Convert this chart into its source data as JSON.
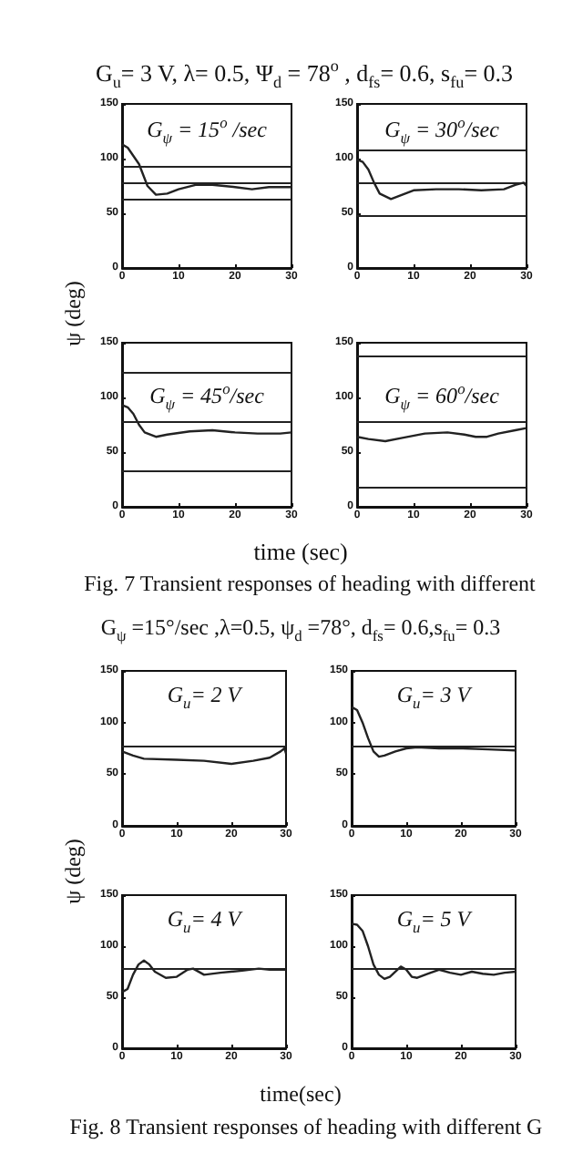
{
  "chart_data": [
    {
      "type": "line",
      "title": "G$_{ψ}$ = 15$^{o}$ /sec",
      "subtitle": "G$_{u}$= 3 V, λ= 0.5, Ψ$_{d}$ = 78$^{o}$ , d$_{fs}$= 0.6, s$_{fu}$= 0.3",
      "ylabel": "ψ (deg)",
      "xlim": [
        0,
        30
      ],
      "xticks": [
        0,
        10,
        20,
        30
      ],
      "ylim": [
        0,
        150
      ],
      "yticks": [
        0,
        50,
        100,
        150
      ],
      "grid": false,
      "marker": "none",
      "line_style": "solid",
      "series": [
        {
          "color": "#222222",
          "x": [
            0,
            1,
            3,
            4.5,
            6,
            8,
            10,
            13,
            16,
            20,
            23,
            26,
            30
          ],
          "values": [
            113,
            110,
            95,
            75,
            67,
            68,
            72,
            76,
            76,
            74,
            72,
            74,
            74
          ]
        }
      ],
      "ref_lines": [
        {
          "axis": "y",
          "value": 93,
          "color": "#222222"
        },
        {
          "axis": "y",
          "value": 78,
          "color": "#222222"
        },
        {
          "axis": "y",
          "value": 63,
          "color": "#222222"
        }
      ]
    },
    {
      "type": "line",
      "title": "G$_{ψ}$ = 30$^{o}$/sec",
      "xlim": [
        0,
        30
      ],
      "xticks": [
        0,
        10,
        20,
        30
      ],
      "ylim": [
        0,
        150
      ],
      "yticks": [
        0,
        50,
        100,
        150
      ],
      "grid": false,
      "marker": "none",
      "line_style": "solid",
      "series": [
        {
          "color": "#222222",
          "x": [
            0,
            1,
            2,
            3,
            4,
            6,
            8,
            10,
            14,
            18,
            22,
            26,
            28,
            29.5,
            30
          ],
          "values": [
            99,
            97,
            90,
            78,
            68,
            63,
            67,
            71,
            72,
            72,
            71,
            72,
            76,
            78,
            75
          ]
        }
      ],
      "ref_lines": [
        {
          "axis": "y",
          "value": 108,
          "color": "#222222"
        },
        {
          "axis": "y",
          "value": 78,
          "color": "#222222"
        },
        {
          "axis": "y",
          "value": 48,
          "color": "#222222"
        }
      ]
    },
    {
      "type": "line",
      "title": "G$_{ψ}$ = 45$^{o}$/sec",
      "xlabel": "time (sec)",
      "annotations": [
        "Fig. 7 Transient responses of heading with different"
      ],
      "xlim": [
        0,
        30
      ],
      "xticks": [
        0,
        10,
        20,
        30
      ],
      "ylim": [
        0,
        150
      ],
      "yticks": [
        0,
        50,
        100,
        150
      ],
      "grid": false,
      "marker": "none",
      "line_style": "solid",
      "series": [
        {
          "color": "#222222",
          "x": [
            0,
            1,
            2,
            3,
            4,
            6,
            8,
            12,
            16,
            20,
            24,
            28,
            30
          ],
          "values": [
            93,
            91,
            85,
            75,
            68,
            64,
            66,
            69,
            70,
            68,
            67,
            67,
            68
          ]
        }
      ],
      "ref_lines": [
        {
          "axis": "y",
          "value": 123,
          "color": "#222222"
        },
        {
          "axis": "y",
          "value": 78,
          "color": "#222222"
        },
        {
          "axis": "y",
          "value": 33,
          "color": "#222222"
        }
      ]
    },
    {
      "type": "line",
      "title": "G$_{ψ}$ = 60$^{o}$/sec",
      "xlim": [
        0,
        30
      ],
      "xticks": [
        0,
        10,
        20,
        30
      ],
      "ylim": [
        0,
        150
      ],
      "yticks": [
        0,
        50,
        100,
        150
      ],
      "grid": false,
      "marker": "none",
      "line_style": "solid",
      "series": [
        {
          "color": "#222222",
          "x": [
            0,
            2,
            5,
            8,
            12,
            16,
            19,
            21,
            23,
            25,
            28,
            30
          ],
          "values": [
            64,
            62,
            60,
            63,
            67,
            68,
            66,
            64,
            64,
            67,
            70,
            72
          ]
        }
      ],
      "ref_lines": [
        {
          "axis": "y",
          "value": 138,
          "color": "#222222"
        },
        {
          "axis": "y",
          "value": 78,
          "color": "#222222"
        },
        {
          "axis": "y",
          "value": 18,
          "color": "#222222"
        }
      ]
    },
    {
      "type": "line",
      "title": "G$_{u}$= 2 V",
      "subtitle": "G$_{ψ}$ =15°/sec ,λ=0.5, ψ$_{d}$ =78°, d$_{fs}$= 0.6,s$_{fu}$= 0.3",
      "ylabel": "ψ (deg)",
      "xlim": [
        0,
        30
      ],
      "xticks": [
        0,
        10,
        20,
        30
      ],
      "ylim": [
        0,
        150
      ],
      "yticks": [
        0,
        50,
        100,
        150
      ],
      "grid": false,
      "marker": "none",
      "line_style": "solid",
      "series": [
        {
          "color": "#222222",
          "x": [
            0,
            2,
            4,
            10,
            15,
            20,
            24,
            27,
            29,
            29.7,
            30
          ],
          "values": [
            72,
            68,
            65,
            64,
            63,
            60,
            63,
            66,
            72,
            75,
            70
          ]
        }
      ],
      "ref_lines": [
        {
          "axis": "y",
          "value": 78,
          "color": "#222222"
        }
      ]
    },
    {
      "type": "line",
      "title": "G$_{u}$= 3 V",
      "xlim": [
        0,
        30
      ],
      "xticks": [
        0,
        10,
        20,
        30
      ],
      "ylim": [
        0,
        150
      ],
      "yticks": [
        0,
        50,
        100,
        150
      ],
      "grid": false,
      "marker": "none",
      "line_style": "solid",
      "series": [
        {
          "color": "#222222",
          "x": [
            0,
            1,
            2,
            3,
            4,
            5,
            6,
            8,
            10,
            12,
            16,
            20,
            25,
            30
          ],
          "values": [
            115,
            112,
            100,
            85,
            72,
            67,
            68,
            72,
            75,
            76,
            75,
            75,
            74,
            73
          ]
        }
      ],
      "ref_lines": [
        {
          "axis": "y",
          "value": 78,
          "color": "#222222"
        }
      ]
    },
    {
      "type": "line",
      "title": "G$_{u}$= 4 V",
      "xlabel": "time(sec)",
      "annotations": [
        "Fig. 8 Transient responses of heading with different G"
      ],
      "xlim": [
        0,
        30
      ],
      "xticks": [
        0,
        10,
        20,
        30
      ],
      "ylim": [
        0,
        150
      ],
      "yticks": [
        0,
        50,
        100,
        150
      ],
      "grid": false,
      "marker": "none",
      "line_style": "solid",
      "series": [
        {
          "color": "#222222",
          "x": [
            0,
            1,
            2,
            3,
            4,
            5,
            6,
            8,
            10,
            12,
            13,
            15,
            18,
            22,
            25,
            27,
            30
          ],
          "values": [
            55,
            58,
            72,
            82,
            86,
            82,
            75,
            69,
            70,
            77,
            78,
            72,
            74,
            76,
            78,
            77,
            77
          ]
        }
      ],
      "ref_lines": [
        {
          "axis": "y",
          "value": 78,
          "color": "#222222"
        }
      ]
    },
    {
      "type": "line",
      "title": "G$_{u}$= 5 V",
      "xlim": [
        0,
        30
      ],
      "xticks": [
        0,
        10,
        20,
        30
      ],
      "ylim": [
        0,
        150
      ],
      "yticks": [
        0,
        50,
        100,
        150
      ],
      "grid": false,
      "marker": "none",
      "line_style": "solid",
      "series": [
        {
          "color": "#222222",
          "x": [
            0,
            1,
            2,
            3,
            4,
            5,
            6,
            7,
            9,
            10,
            11,
            12,
            14,
            16,
            18,
            20,
            22,
            24,
            26,
            28,
            30
          ],
          "values": [
            122,
            121,
            115,
            100,
            82,
            72,
            68,
            70,
            80,
            77,
            70,
            69,
            73,
            77,
            74,
            72,
            75,
            73,
            72,
            74,
            75
          ]
        }
      ],
      "ref_lines": [
        {
          "axis": "y",
          "value": 78,
          "color": "#222222"
        }
      ]
    }
  ]
}
